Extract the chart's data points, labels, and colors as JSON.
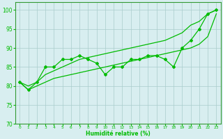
{
  "bg_color": "#d8eef0",
  "grid_color": "#aacccc",
  "line_color": "#00bb00",
  "xlabel": "Humidité relative (%)",
  "ylim": [
    70,
    102
  ],
  "yticks": [
    70,
    75,
    80,
    85,
    90,
    95,
    100
  ],
  "xlim": [
    -0.5,
    23.5
  ],
  "x": [
    0,
    1,
    2,
    3,
    4,
    5,
    6,
    7,
    8,
    9,
    10,
    11,
    12,
    13,
    14,
    15,
    16,
    17,
    18,
    19,
    20,
    21,
    22,
    23
  ],
  "y_jagged": [
    81,
    79,
    81,
    85,
    85,
    87,
    87,
    88,
    87,
    86,
    83,
    85,
    85,
    87,
    87,
    88,
    88,
    87,
    85,
    90,
    92,
    95,
    99,
    100
  ],
  "y_upper": [
    81,
    80,
    81,
    83,
    84,
    85,
    86,
    87,
    87.5,
    88,
    88.5,
    89,
    89.5,
    90,
    90.5,
    91,
    91.5,
    92,
    93,
    94,
    96,
    97,
    99,
    100
  ],
  "y_lower": [
    81,
    79,
    80,
    81,
    82,
    82.5,
    83,
    83.5,
    84,
    84.5,
    85,
    85.5,
    86,
    86.5,
    87,
    87.5,
    88,
    88.5,
    89,
    89.5,
    90,
    91,
    93,
    99
  ]
}
